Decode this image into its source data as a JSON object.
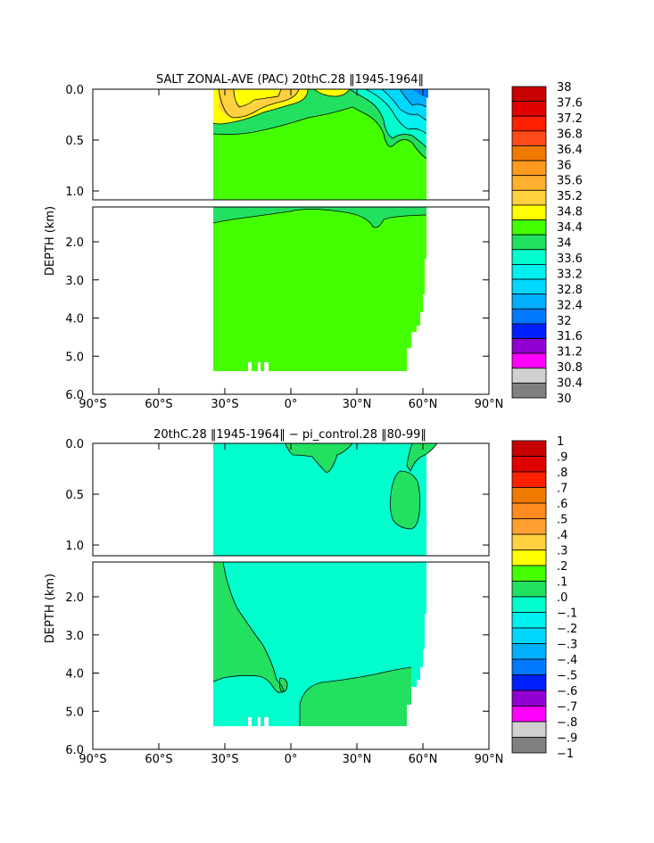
{
  "chart_data": [
    {
      "type": "heatmap",
      "title": "SALT ZONAL-AVE (PAC) 20thC.28 ‖1945-1964‖",
      "ylabel": "DEPTH (km)",
      "x_ticks": [
        "90°S",
        "60°S",
        "30°S",
        "0°",
        "30°N",
        "60°N",
        "90°N"
      ],
      "y_ticks_upper": [
        "0.0",
        "0.5",
        "1.0"
      ],
      "y_ticks_lower": [
        "2.0",
        "3.0",
        "4.0",
        "5.0",
        "6.0"
      ],
      "xlim": [
        -90,
        90
      ],
      "ylim": [
        6.0,
        0.0
      ],
      "colorbar_levels": [
        "38",
        "37.6",
        "37.2",
        "36.8",
        "36.4",
        "36",
        "35.6",
        "35.2",
        "34.8",
        "34.4",
        "34",
        "33.6",
        "33.2",
        "32.8",
        "32.4",
        "32",
        "31.6",
        "31.2",
        "30.8",
        "30.4",
        "30"
      ],
      "colorbar_colors": [
        "#c80000",
        "#e00000",
        "#ff2000",
        "#ff4a1a",
        "#f07a00",
        "#ff9a20",
        "#ffb030",
        "#ffd040",
        "#ffff00",
        "#44ff00",
        "#22e060",
        "#00ffcc",
        "#00f0f0",
        "#00d8ff",
        "#00b0ff",
        "#0078ff",
        "#0020ff",
        "#9000d0",
        "#ff00ff",
        "#d0d0d0",
        "#808080"
      ]
    },
    {
      "type": "heatmap",
      "title": "20thC.28 ‖1945-1964‖ − pi_control.28 ‖80-99‖",
      "ylabel": "DEPTH (km)",
      "x_ticks": [
        "90°S",
        "60°S",
        "30°S",
        "0°",
        "30°N",
        "60°N",
        "90°N"
      ],
      "y_ticks_upper": [
        "0.0",
        "0.5",
        "1.0"
      ],
      "y_ticks_lower": [
        "2.0",
        "3.0",
        "4.0",
        "5.0",
        "6.0"
      ],
      "xlim": [
        -90,
        90
      ],
      "ylim": [
        6.0,
        0.0
      ],
      "colorbar_levels": [
        "1",
        ".9",
        ".8",
        ".7",
        ".6",
        ".5",
        ".4",
        ".3",
        ".2",
        ".1",
        ".0",
        "−.1",
        "−.2",
        "−.3",
        "−.4",
        "−.5",
        "−.6",
        "−.7",
        "−.8",
        "−.9",
        "−1"
      ],
      "colorbar_colors": [
        "#c80000",
        "#e00000",
        "#ff2000",
        "#f07a00",
        "#ff8a20",
        "#ffa030",
        "#ffd040",
        "#ffff00",
        "#44ff00",
        "#22e060",
        "#00ffcc",
        "#00f0f0",
        "#00d8ff",
        "#00b0ff",
        "#0078ff",
        "#0020ff",
        "#9000d0",
        "#ff00ff",
        "#d0d0d0",
        "#808080"
      ]
    }
  ]
}
